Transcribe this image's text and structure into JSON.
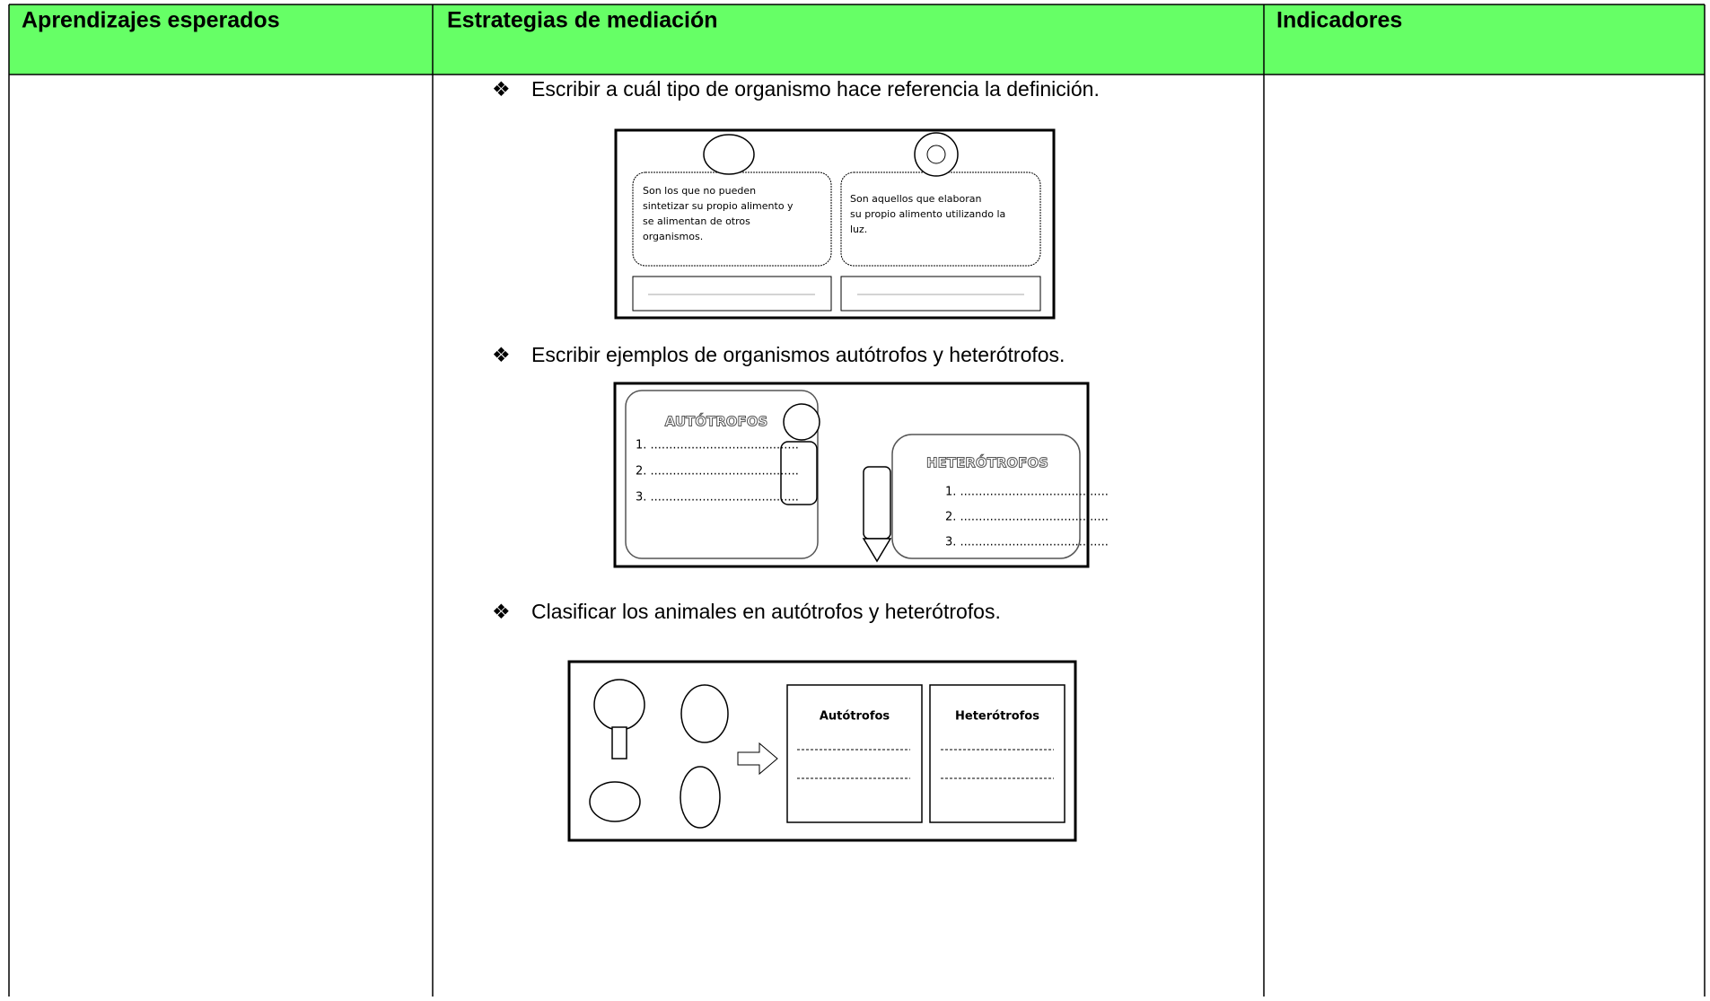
{
  "table": {
    "headers": [
      "Aprendizajes esperados",
      "Estrategias de mediación",
      "Indicadores"
    ],
    "activities": [
      {
        "text": "Escribir a cuál tipo de organismo hace referencia la definición.",
        "card_left": [
          "Son los que no pueden",
          "sintetizar su propio alimento y",
          "se alimentan de otros",
          "organismos."
        ],
        "card_right": [
          "Son aquellos que elaboran",
          "su propio alimento utilizando la",
          "luz."
        ]
      },
      {
        "text": "Escribir ejemplos de organismos autótrofos y heterótrofos.",
        "left_title": "AUTÓTROFOS",
        "right_title": "HETERÓTROFOS",
        "left_lines": [
          "1. ........................................",
          "2. ........................................",
          "3. ........................................"
        ],
        "right_lines": [
          "1. ........................................",
          "2. ........................................",
          "3. ........................................"
        ]
      },
      {
        "text": "Clasificar los animales en autótrofos y heterótrofos.",
        "box_left": "Autótrofos",
        "box_right": "Heterótrofos"
      }
    ]
  }
}
